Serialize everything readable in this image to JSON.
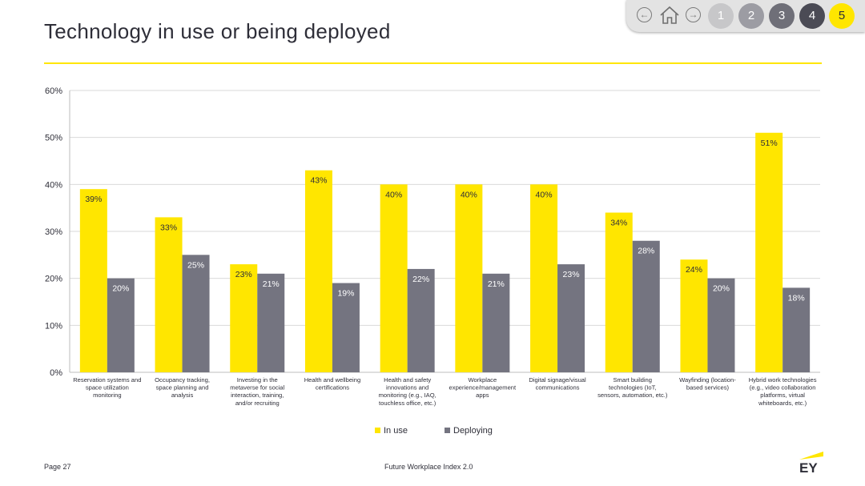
{
  "header": {
    "title": "Technology in use or being deployed"
  },
  "nav": {
    "back_icon": "arrow-left-icon",
    "home_icon": "home-icon",
    "forward_icon": "arrow-right-icon",
    "pages": [
      {
        "label": "1",
        "color": "#c7c7c9"
      },
      {
        "label": "2",
        "color": "#9c9ca3"
      },
      {
        "label": "3",
        "color": "#6f6f78"
      },
      {
        "label": "4",
        "color": "#4b4b55"
      },
      {
        "label": "5",
        "color": "#ffe600",
        "active": true
      }
    ]
  },
  "footer": {
    "page": "Page 27",
    "doc_title": "Future Workplace Index 2.0",
    "logo_text": "EY"
  },
  "colors": {
    "in_use": "#ffe600",
    "deploying": "#747480",
    "text": "#2e2e38",
    "grid": "#d9d9d9"
  },
  "chart_data": {
    "type": "bar",
    "ylim": [
      0,
      60
    ],
    "yticks": [
      "0%",
      "10%",
      "20%",
      "30%",
      "40%",
      "50%",
      "60%"
    ],
    "ytick_values": [
      0,
      10,
      20,
      30,
      40,
      50,
      60
    ],
    "grid": true,
    "legend_position": "bottom-center",
    "categories": [
      [
        "Reservation systems and",
        "space utilization",
        "monitoring"
      ],
      [
        "Occupancy tracking,",
        "space planning and",
        "analysis"
      ],
      [
        "Investing in the",
        "metaverse for social",
        "interaction, training,",
        "and/or recruiting"
      ],
      [
        "Health and wellbeing",
        "certifications"
      ],
      [
        "Health and safety",
        "innovations and",
        "monitoring (e.g., IAQ,",
        "touchless office, etc.)"
      ],
      [
        "Workplace",
        "experience/management",
        "apps"
      ],
      [
        "Digital signage/visual",
        "communications"
      ],
      [
        "Smart building",
        "technologies (IoT,",
        "sensors, automation, etc.)"
      ],
      [
        "Wayfinding (location-",
        "based services)"
      ],
      [
        "Hybrid work technologies",
        "(e.g., video collaboration",
        "platforms, virtual",
        "whiteboards, etc.)"
      ]
    ],
    "series": [
      {
        "name": "In use",
        "values": [
          39,
          33,
          23,
          43,
          40,
          40,
          40,
          34,
          24,
          51
        ],
        "labels": [
          "39%",
          "33%",
          "23%",
          "43%",
          "40%",
          "40%",
          "40%",
          "34%",
          "24%",
          "51%"
        ]
      },
      {
        "name": "Deploying",
        "values": [
          20,
          25,
          21,
          19,
          22,
          21,
          23,
          28,
          20,
          18
        ],
        "labels": [
          "20%",
          "25%",
          "21%",
          "19%",
          "22%",
          "21%",
          "23%",
          "28%",
          "20%",
          "18%"
        ]
      }
    ]
  }
}
